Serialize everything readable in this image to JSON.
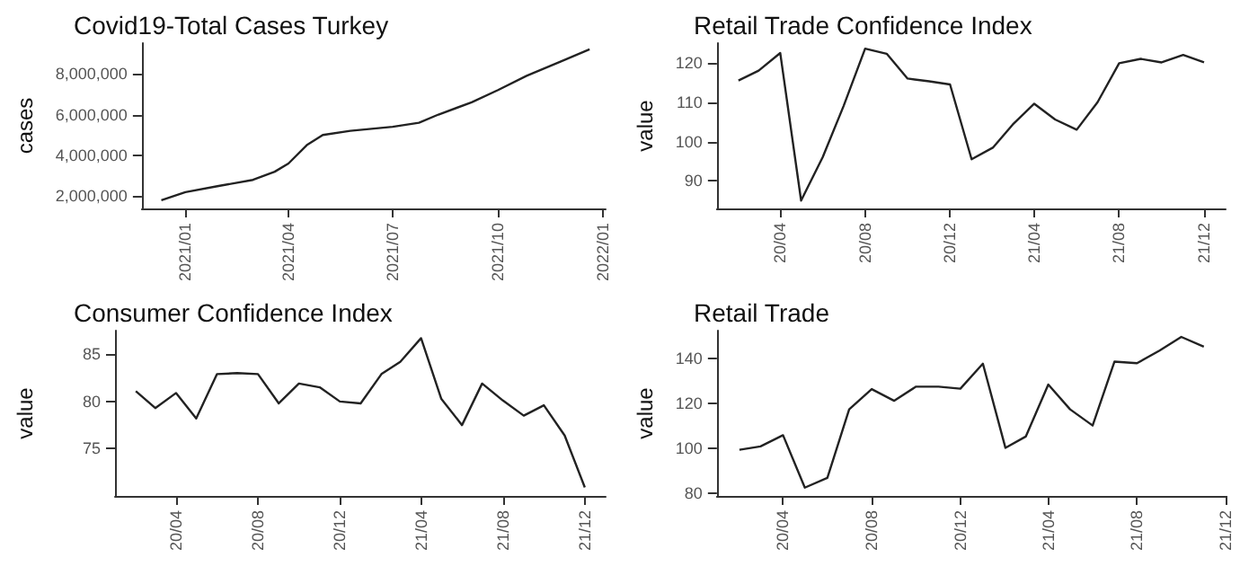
{
  "chart_data": [
    {
      "type": "line",
      "title": "Covid19-Total Cases Turkey",
      "ylabel": "cases",
      "x": [
        "2020-12-11",
        "2021-01-01",
        "2021-01-30",
        "2021-03-01",
        "2021-03-20",
        "2021-04-01",
        "2021-04-17",
        "2021-05-01",
        "2021-05-25",
        "2021-07-01",
        "2021-07-24",
        "2021-08-10",
        "2021-09-08",
        "2021-10-01",
        "2021-10-26",
        "2021-11-25",
        "2021-12-20"
      ],
      "series": [
        {
          "color": "#222222",
          "values": [
            1800000,
            2200000,
            2500000,
            2800000,
            3200000,
            3600000,
            4500000,
            5000000,
            5200000,
            5400000,
            5600000,
            6000000,
            6600000,
            7200000,
            7900000,
            8600000,
            9200000
          ]
        }
      ],
      "xlim": [
        "2020-11-24",
        "2022-01-03"
      ],
      "xticks": [
        {
          "value": "2021-01-01",
          "label": "2021/01"
        },
        {
          "value": "2021-04-01",
          "label": "2021/04"
        },
        {
          "value": "2021-07-01",
          "label": "2021/07"
        },
        {
          "value": "2021-10-01",
          "label": "2021/10"
        },
        {
          "value": "2022-01-01",
          "label": "2022/01"
        }
      ],
      "ylim": [
        1400000,
        9500000
      ],
      "yticks": [
        {
          "value": 2000000,
          "label": "2,000,000"
        },
        {
          "value": 4000000,
          "label": "4,000,000"
        },
        {
          "value": 6000000,
          "label": "6,000,000"
        },
        {
          "value": 8000000,
          "label": "8,000,000"
        }
      ],
      "grid": false,
      "marker": "none",
      "line_style": "solid"
    },
    {
      "type": "line",
      "title": "Retail Trade Confidence Index",
      "ylabel": "value",
      "x": [
        "2020-02",
        "2020-03",
        "2020-04",
        "2020-05",
        "2020-06",
        "2020-07",
        "2020-08",
        "2020-09",
        "2020-10",
        "2020-11",
        "2020-12",
        "2021-01",
        "2021-02",
        "2021-03",
        "2021-04",
        "2021-05",
        "2021-06",
        "2021-07",
        "2021-08",
        "2021-09",
        "2021-10",
        "2021-11",
        "2021-12"
      ],
      "series": [
        {
          "color": "#222222",
          "values": [
            115.5,
            118,
            122.5,
            85,
            96,
            109,
            123.6,
            122.3,
            116,
            115.3,
            114.5,
            95.5,
            98.5,
            104.3,
            109.6,
            105.6,
            103,
            110,
            119.9,
            121,
            120.1,
            122,
            120.1
          ]
        }
      ],
      "xlim": [
        "2020-01",
        "2022-01"
      ],
      "xticks": [
        {
          "value": "2020-04",
          "label": "20/04"
        },
        {
          "value": "2020-08",
          "label": "20/08"
        },
        {
          "value": "2020-12",
          "label": "20/12"
        },
        {
          "value": "2021-04",
          "label": "21/04"
        },
        {
          "value": "2021-08",
          "label": "21/08"
        },
        {
          "value": "2021-12",
          "label": "21/12"
        }
      ],
      "ylim": [
        83,
        125
      ],
      "yticks": [
        90,
        100,
        110,
        120
      ],
      "grid": false,
      "marker": "none",
      "line_style": "solid"
    },
    {
      "type": "line",
      "title": "Consumer Confidence Index",
      "ylabel": "value",
      "x": [
        "2020-02",
        "2020-03",
        "2020-04",
        "2020-05",
        "2020-06",
        "2020-07",
        "2020-08",
        "2020-09",
        "2020-10",
        "2020-11",
        "2020-12",
        "2021-01",
        "2021-02",
        "2021-03",
        "2021-04",
        "2021-05",
        "2021-06",
        "2021-07",
        "2021-08",
        "2021-09",
        "2021-10",
        "2021-11",
        "2021-12"
      ],
      "series": [
        {
          "color": "#222222",
          "values": [
            81.1,
            79.3,
            80.9,
            78.2,
            82.9,
            83,
            82.9,
            79.8,
            81.9,
            81.5,
            80,
            79.8,
            82.9,
            84.2,
            86.7,
            80.3,
            77.5,
            81.9,
            80.1,
            78.5,
            79.6,
            76.4,
            70.9
          ]
        }
      ],
      "xlim": [
        "2020-01",
        "2022-01"
      ],
      "xticks": [
        {
          "value": "2020-04",
          "label": "20/04"
        },
        {
          "value": "2020-08",
          "label": "20/08"
        },
        {
          "value": "2020-12",
          "label": "20/12"
        },
        {
          "value": "2021-04",
          "label": "21/04"
        },
        {
          "value": "2021-08",
          "label": "21/08"
        },
        {
          "value": "2021-12",
          "label": "21/12"
        }
      ],
      "ylim": [
        70,
        87.5
      ],
      "yticks": [
        75,
        80,
        85
      ],
      "grid": false,
      "marker": "none",
      "line_style": "solid"
    },
    {
      "type": "line",
      "title": "Retail Trade",
      "ylabel": "value",
      "x": [
        "2020-02",
        "2020-03",
        "2020-04",
        "2020-05",
        "2020-06",
        "2020-07",
        "2020-08",
        "2020-09",
        "2020-10",
        "2020-11",
        "2020-12",
        "2021-01",
        "2021-02",
        "2021-03",
        "2021-04",
        "2021-05",
        "2021-06",
        "2021-07",
        "2021-08",
        "2021-09",
        "2021-10",
        "2021-11"
      ],
      "series": [
        {
          "color": "#222222",
          "values": [
            99.5,
            101,
            106,
            82.7,
            87,
            117.5,
            126.5,
            121.3,
            127.6,
            127.6,
            126.7,
            137.8,
            100.4,
            105.4,
            128.5,
            117.5,
            110.3,
            138.7,
            138,
            143.6,
            149.7,
            145.4
          ]
        }
      ],
      "xlim": [
        "2020-01",
        "2021-12"
      ],
      "xticks": [
        {
          "value": "2020-04",
          "label": "20/04"
        },
        {
          "value": "2020-08",
          "label": "20/08"
        },
        {
          "value": "2020-12",
          "label": "20/12"
        },
        {
          "value": "2021-04",
          "label": "21/04"
        },
        {
          "value": "2021-08",
          "label": "21/08"
        },
        {
          "value": "2021-12",
          "label": "21/12"
        }
      ],
      "ylim": [
        79,
        152.5
      ],
      "yticks": [
        80,
        100,
        120,
        140
      ],
      "grid": false,
      "marker": "none",
      "line_style": "solid"
    }
  ]
}
